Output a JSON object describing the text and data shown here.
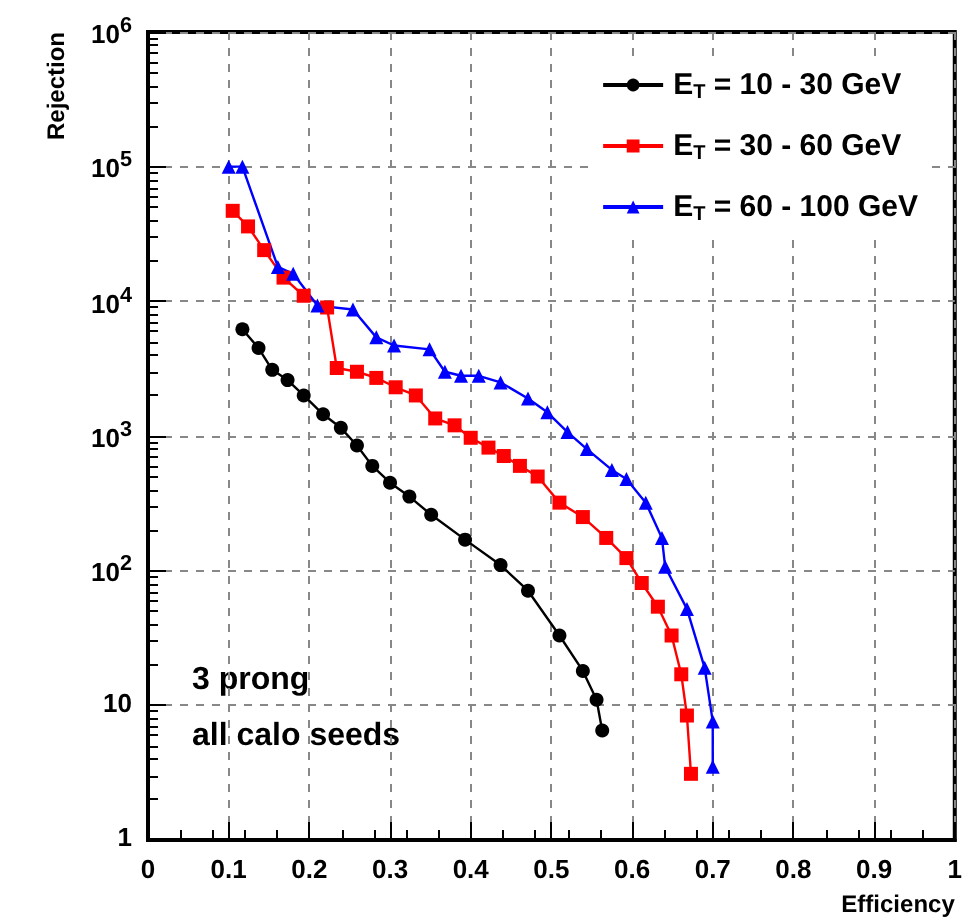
{
  "chart_data": {
    "type": "line",
    "xlabel": "Efficiency",
    "ylabel": "Rejection",
    "log": "y",
    "grid": true,
    "legend": "top right",
    "line_style": "solid",
    "xlim": [
      0,
      1
    ],
    "xticks": [
      0,
      0.1,
      0.2,
      0.3,
      0.4,
      0.5,
      0.6,
      0.7,
      0.8,
      0.9,
      1
    ],
    "ylim": [
      1,
      1000000
    ],
    "yticks": [
      1,
      10,
      {
        "value": 100,
        "label": "10$^{2}$"
      },
      {
        "value": 1000,
        "label": "10$^{3}$"
      },
      {
        "value": 10000,
        "label": "10$^{4}$"
      },
      {
        "value": 100000,
        "label": "10$^{5}$"
      },
      {
        "value": 1000000,
        "label": "10$^{6}$"
      }
    ],
    "annotations": [
      "3 prong",
      "all calo seeds"
    ],
    "series": [
      {
        "name": "E$_{T}$ = 10 - 30 GeV",
        "color": "#000000",
        "marker": "circle",
        "x": [
          0.117,
          0.137,
          0.154,
          0.173,
          0.193,
          0.217,
          0.239,
          0.259,
          0.278,
          0.3,
          0.324,
          0.351,
          0.393,
          0.437,
          0.471,
          0.51,
          0.539,
          0.556,
          0.563
        ],
        "values": [
          6200,
          4500,
          3100,
          2600,
          2000,
          1450,
          1150,
          850,
          600,
          450,
          355,
          260,
          170,
          110,
          71,
          33,
          18,
          11,
          6.5
        ]
      },
      {
        "name": "E$_{T}$ = 30 - 60 GeV",
        "color": "#ff0000",
        "marker": "square",
        "x": [
          0.105,
          0.124,
          0.144,
          0.168,
          0.193,
          0.222,
          0.234,
          0.259,
          0.283,
          0.307,
          0.332,
          0.356,
          0.38,
          0.4,
          0.422,
          0.441,
          0.461,
          0.483,
          0.51,
          0.539,
          0.568,
          0.593,
          0.612,
          0.632,
          0.649,
          0.661,
          0.668,
          0.673
        ],
        "values": [
          47000,
          36000,
          24000,
          15000,
          11000,
          9000,
          3200,
          3000,
          2700,
          2300,
          2000,
          1350,
          1200,
          970,
          820,
          710,
          600,
          500,
          320,
          250,
          175,
          124,
          81,
          54,
          33,
          17,
          8.4,
          3.1
        ]
      },
      {
        "name": "E$_{T}$ = 60 - 100 GeV",
        "color": "#0000ff",
        "marker": "triangle",
        "x": [
          0.1,
          0.117,
          0.161,
          0.18,
          0.21,
          0.254,
          0.283,
          0.305,
          0.349,
          0.368,
          0.388,
          0.41,
          0.437,
          0.471,
          0.495,
          0.52,
          0.544,
          0.575,
          0.593,
          0.617,
          0.637,
          0.641,
          0.668,
          0.69,
          0.7,
          0.7
        ],
        "values": [
          100000,
          100000,
          18000,
          16000,
          9300,
          8700,
          5400,
          4700,
          4400,
          3000,
          2800,
          2800,
          2500,
          1900,
          1500,
          1070,
          800,
          560,
          480,
          320,
          175,
          107,
          52,
          19,
          7.6,
          3.5
        ]
      }
    ]
  }
}
